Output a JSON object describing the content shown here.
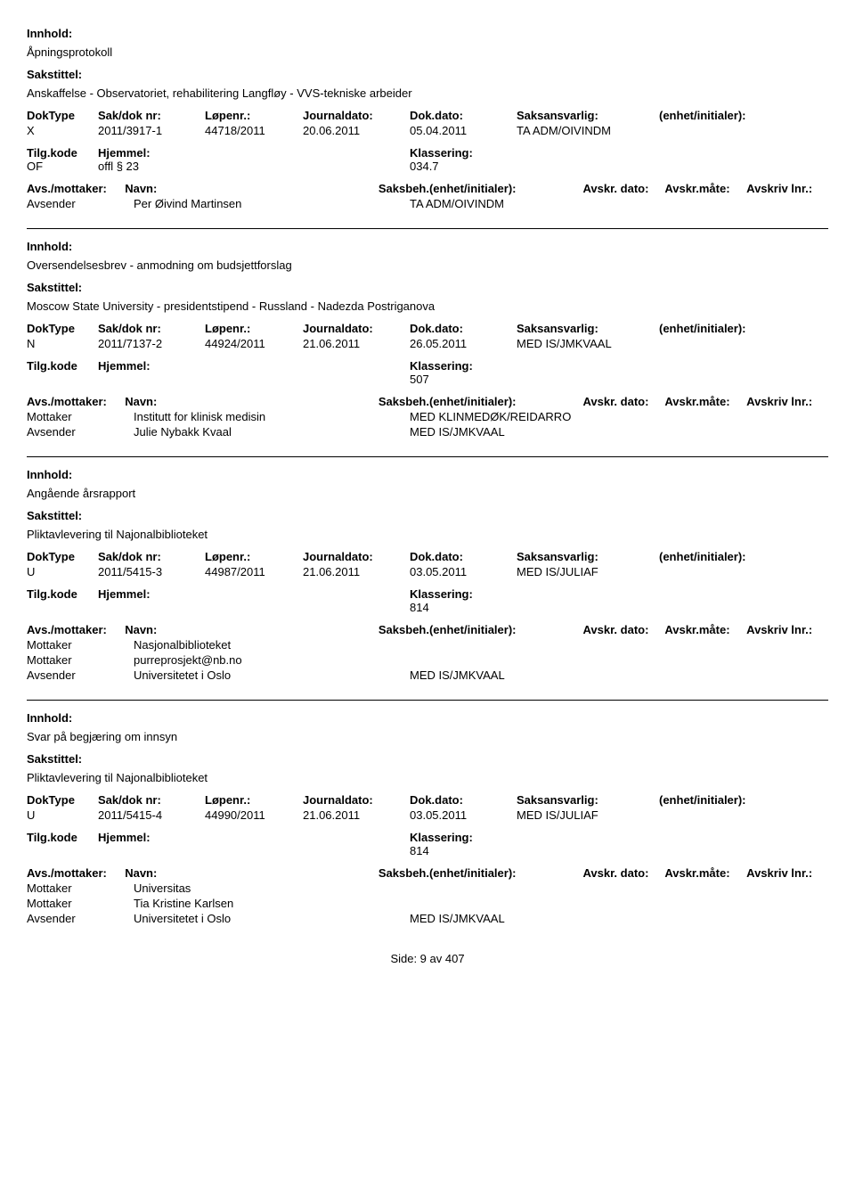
{
  "labels": {
    "innhold": "Innhold:",
    "sakstittel": "Sakstittel:",
    "doktype": "DokType",
    "saknr": "Sak/dok nr:",
    "lopenr": "Løpenr.:",
    "journaldato": "Journaldato:",
    "dokdato": "Dok.dato:",
    "saksansvarlig": "Saksansvarlig:",
    "enhet": "(enhet/initialer):",
    "tilgkode": "Tilg.kode",
    "hjemmel": "Hjemmel:",
    "klassering": "Klassering:",
    "avsmottaker": "Avs./mottaker:",
    "navn": "Navn:",
    "saksbeh": "Saksbeh.(enhet/initialer):",
    "avskrdato": "Avskr. dato:",
    "avskrmate": "Avskr.måte:",
    "avskrivlnr": "Avskriv lnr.:",
    "mottaker": "Mottaker",
    "avsender": "Avsender"
  },
  "records": [
    {
      "innhold": "Åpningsprotokoll",
      "sakstittel": "Anskaffelse - Observatoriet, rehabilitering Langfløy - VVS-tekniske arbeider",
      "doktype": "X",
      "saknr": "2011/3917-1",
      "lopenr": "44718/2011",
      "journaldato": "20.06.2011",
      "dokdato": "05.04.2011",
      "saksansvarlig": "TA ADM/OIVINDM",
      "tilgkode": "OF",
      "hjemmel": "offl § 23",
      "klassering": "034.7",
      "parties": [
        {
          "role": "Avsender",
          "navn": "Per Øivind Martinsen",
          "saksbeh": "TA ADM/OIVINDM"
        }
      ]
    },
    {
      "innhold": "Oversendelsesbrev - anmodning om budsjettforslag",
      "sakstittel": "Moscow State University - presidentstipend - Russland - Nadezda Postriganova",
      "doktype": "N",
      "saknr": "2011/7137-2",
      "lopenr": "44924/2011",
      "journaldato": "21.06.2011",
      "dokdato": "26.05.2011",
      "saksansvarlig": "MED IS/JMKVAAL",
      "tilgkode": "",
      "hjemmel": "",
      "klassering": "507",
      "parties": [
        {
          "role": "Mottaker",
          "navn": "Institutt for klinisk medisin",
          "saksbeh": "MED KLINMEDØK/REIDARRO"
        },
        {
          "role": "Avsender",
          "navn": "Julie Nybakk Kvaal",
          "saksbeh": "MED IS/JMKVAAL"
        }
      ]
    },
    {
      "innhold": "Angående årsrapport",
      "sakstittel": "Pliktavlevering til Najonalbiblioteket",
      "doktype": "U",
      "saknr": "2011/5415-3",
      "lopenr": "44987/2011",
      "journaldato": "21.06.2011",
      "dokdato": "03.05.2011",
      "saksansvarlig": "MED IS/JULIAF",
      "tilgkode": "",
      "hjemmel": "",
      "klassering": "814",
      "parties": [
        {
          "role": "Mottaker",
          "navn": "Nasjonalbiblioteket",
          "saksbeh": ""
        },
        {
          "role": "Mottaker",
          "navn": "purreprosjekt@nb.no",
          "saksbeh": ""
        },
        {
          "role": "Avsender",
          "navn": "Universitetet i Oslo",
          "saksbeh": "MED IS/JMKVAAL"
        }
      ]
    },
    {
      "innhold": "Svar på begjæring om innsyn",
      "sakstittel": "Pliktavlevering til Najonalbiblioteket",
      "doktype": "U",
      "saknr": "2011/5415-4",
      "lopenr": "44990/2011",
      "journaldato": "21.06.2011",
      "dokdato": "03.05.2011",
      "saksansvarlig": "MED IS/JULIAF",
      "tilgkode": "",
      "hjemmel": "",
      "klassering": "814",
      "parties": [
        {
          "role": "Mottaker",
          "navn": "Universitas",
          "saksbeh": ""
        },
        {
          "role": "Mottaker",
          "navn": "Tia Kristine Karlsen",
          "saksbeh": ""
        },
        {
          "role": "Avsender",
          "navn": "Universitetet i Oslo",
          "saksbeh": "MED IS/JMKVAAL"
        }
      ]
    }
  ],
  "footer": "Side: 9 av 407"
}
